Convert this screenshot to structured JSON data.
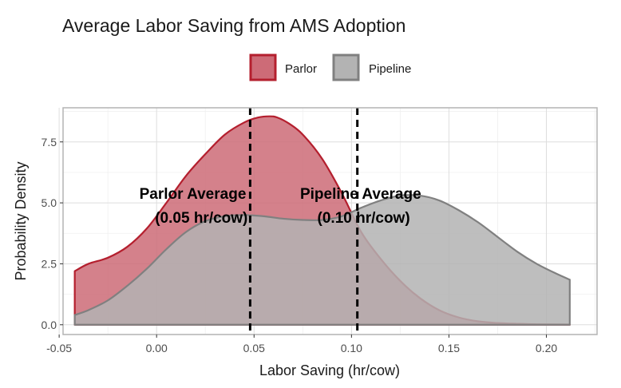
{
  "chart_data": {
    "type": "area",
    "title": "Average Labor Saving from AMS Adoption",
    "xlabel": "Labor Saving (hr/cow)",
    "ylabel": "Probability Density",
    "xlim": [
      -0.048,
      0.226
    ],
    "ylim": [
      -0.4,
      8.9
    ],
    "x_ticks": [
      -0.05,
      0.0,
      0.05,
      0.1,
      0.15,
      0.2
    ],
    "x_tick_labels": [
      "-0.05",
      "0.00",
      "0.05",
      "0.10",
      "0.15",
      "0.20"
    ],
    "y_ticks": [
      0.0,
      2.5,
      5.0,
      7.5
    ],
    "y_tick_labels": [
      "0.0",
      "2.5",
      "5.0",
      "7.5"
    ],
    "grid": true,
    "legend_position": "top",
    "series": [
      {
        "name": "Parlor",
        "fill": "#cd6b77",
        "line": "#b41f2e",
        "x": [
          -0.042,
          -0.035,
          -0.025,
          -0.015,
          -0.005,
          0.005,
          0.015,
          0.025,
          0.035,
          0.045,
          0.052,
          0.058,
          0.062,
          0.068,
          0.075,
          0.085,
          0.095,
          0.105,
          0.115,
          0.125,
          0.135,
          0.145,
          0.155,
          0.165,
          0.175,
          0.185,
          0.195,
          0.212
        ],
        "y": [
          2.2,
          2.5,
          2.75,
          3.2,
          3.95,
          5.0,
          6.1,
          7.0,
          7.8,
          8.3,
          8.5,
          8.55,
          8.5,
          8.25,
          7.8,
          6.8,
          5.4,
          3.8,
          2.7,
          1.8,
          1.1,
          0.6,
          0.3,
          0.14,
          0.07,
          0.04,
          0.02,
          0.01
        ]
      },
      {
        "name": "Pipeline",
        "fill": "#b3b3b3",
        "line": "#808080",
        "x": [
          -0.042,
          -0.035,
          -0.025,
          -0.015,
          -0.005,
          0.005,
          0.015,
          0.025,
          0.035,
          0.045,
          0.055,
          0.065,
          0.075,
          0.085,
          0.095,
          0.105,
          0.115,
          0.125,
          0.135,
          0.145,
          0.155,
          0.165,
          0.175,
          0.185,
          0.195,
          0.205,
          0.212
        ],
        "y": [
          0.4,
          0.6,
          1.0,
          1.6,
          2.3,
          3.1,
          3.8,
          4.25,
          4.45,
          4.5,
          4.45,
          4.35,
          4.3,
          4.3,
          4.45,
          4.8,
          5.1,
          5.3,
          5.3,
          5.1,
          4.7,
          4.2,
          3.6,
          3.0,
          2.5,
          2.1,
          1.85
        ]
      }
    ],
    "reference_lines": [
      {
        "x": 0.048,
        "label_line1": "Parlor Average",
        "label_line2": "(0.05 hr/cow)"
      },
      {
        "x": 0.103,
        "label_line1": "Pipeline Average",
        "label_line2": "(0.10 hr/cow)"
      }
    ]
  }
}
